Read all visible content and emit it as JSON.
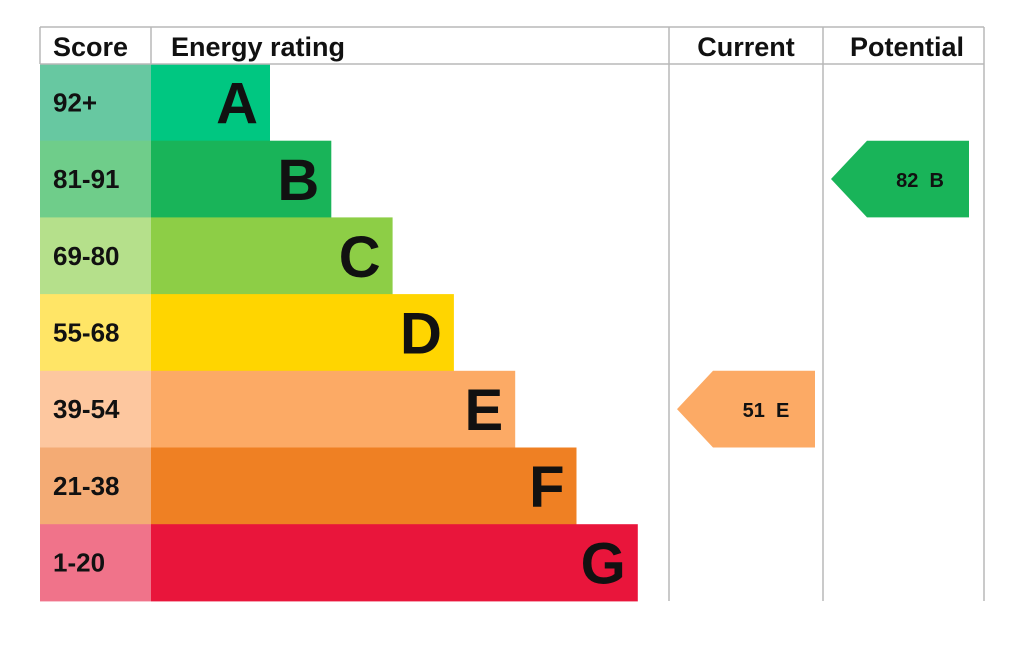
{
  "chart_data": {
    "type": "bar",
    "headers": {
      "score": "Score",
      "rating": "Energy rating",
      "current": "Current",
      "potential": "Potential"
    },
    "bands": [
      {
        "score": "92+",
        "letter": "A",
        "color": "#00c781",
        "score_color": "#67c8a1"
      },
      {
        "score": "81-91",
        "letter": "B",
        "color": "#19b459",
        "score_color": "#6fcd8a"
      },
      {
        "score": "69-80",
        "letter": "C",
        "color": "#8dce46",
        "score_color": "#b5e08b"
      },
      {
        "score": "55-68",
        "letter": "D",
        "color": "#ffd500",
        "score_color": "#ffe566"
      },
      {
        "score": "39-54",
        "letter": "E",
        "color": "#fcaa65",
        "score_color": "#fdc79f"
      },
      {
        "score": "21-38",
        "letter": "F",
        "color": "#ef8023",
        "score_color": "#f4ab74"
      },
      {
        "score": "1-20",
        "letter": "G",
        "color": "#e9153b",
        "score_color": "#f0738a"
      }
    ],
    "current": {
      "value": 51,
      "letter": "E",
      "label": "51  E",
      "color": "#fcaa65"
    },
    "potential": {
      "value": 82,
      "letter": "B",
      "label": "82  B",
      "color": "#19b459"
    }
  }
}
